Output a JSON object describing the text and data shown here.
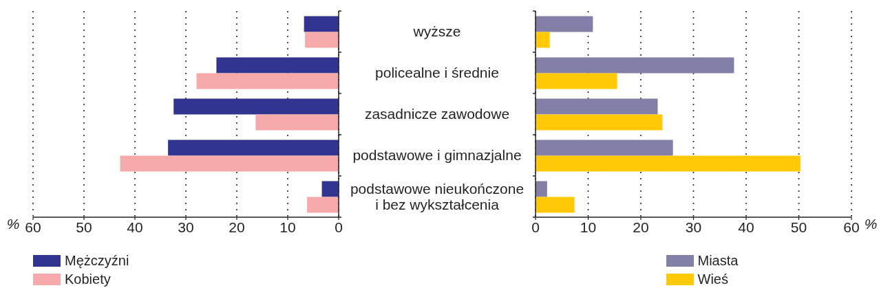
{
  "chart_data": [
    {
      "type": "bar",
      "orientation": "horizontal",
      "categories": [
        null,
        null,
        null,
        null,
        null
      ],
      "series": [
        {
          "name": "Mężczyźni",
          "color": "#32358f",
          "values": [
            6.8,
            24.0,
            32.4,
            33.5,
            3.3
          ]
        },
        {
          "name": "Kobiety",
          "color": "#f6a9ab",
          "values": [
            6.6,
            27.9,
            16.3,
            42.9,
            6.2
          ]
        }
      ],
      "xlabel": "%",
      "xlim": [
        60,
        0
      ],
      "xticks": [
        60,
        50,
        40,
        30,
        20,
        10,
        0
      ],
      "grid": "x",
      "legend": "bottom left"
    },
    {
      "type": "bar",
      "orientation": "horizontal",
      "categories": [
        "wyższe",
        "policealne i średnie",
        "zasadnicze zawodowe",
        "podstawowe i gimnazjalne",
        "podstawowe nieukończone i bez wykształcenia"
      ],
      "series": [
        {
          "name": "Miasta",
          "color": "#8280a6",
          "values": [
            10.9,
            37.7,
            23.2,
            26.1,
            2.2
          ]
        },
        {
          "name": "Wieś",
          "color": "#ffc908",
          "values": [
            2.7,
            15.5,
            24.1,
            50.3,
            7.4
          ]
        }
      ],
      "xlabel": "%",
      "xlim": [
        0,
        60
      ],
      "xticks": [
        0,
        10,
        20,
        30,
        40,
        50,
        60
      ],
      "grid": "x",
      "legend": "bottom"
    }
  ]
}
